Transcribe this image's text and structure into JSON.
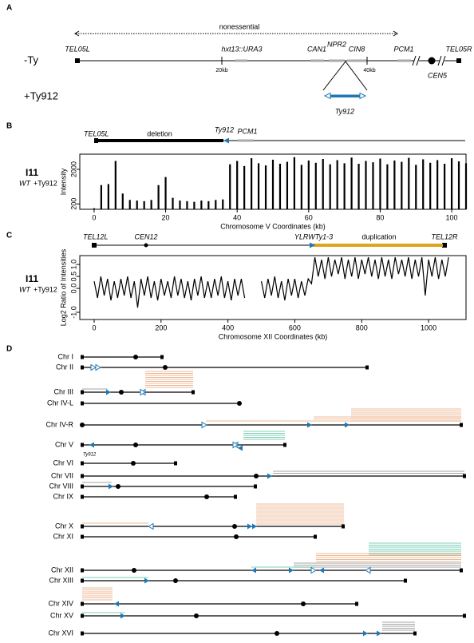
{
  "panel_a": {
    "label": "A",
    "span": "nonessential",
    "genes": [
      "TEL05L",
      "hxt13::URA3",
      "CAN1",
      "NPR2",
      "CIN8",
      "PCM1",
      "TEL05R"
    ],
    "strain_minus": "-Ty",
    "strain_plus": "+Ty912",
    "scale": [
      "20kb",
      "40kb"
    ],
    "centromere": "CEN5",
    "insertion": "Ty912"
  },
  "panel_b": {
    "label": "B",
    "map": [
      "TEL05L",
      "deletion",
      "Ty912",
      "PCM1"
    ],
    "sample": "I11",
    "strain": "WT",
    "insert": "+Ty912"
  },
  "panel_c": {
    "label": "C",
    "map": [
      "TEL12L",
      "CEN12",
      "YLRWTy1-3",
      "duplication",
      "TEL12R"
    ],
    "sample": "I11",
    "strain": "WT",
    "insert": "+Ty912"
  },
  "panel_d": {
    "label": "D",
    "chromosomes": [
      "Chr I",
      "Chr II",
      "Chr III",
      "Chr IV-L",
      "Chr IV-R",
      "Chr V",
      "Chr VI",
      "Chr VII",
      "Chr VIII",
      "Chr IX",
      "Chr X",
      "Chr XI",
      "Chr XII",
      "Chr XIII",
      "Chr XIV",
      "Chr XV",
      "Chr XVI"
    ],
    "note": "Ty912"
  },
  "chart_data": [
    {
      "type": "bar",
      "xlabel": "Chromosome V Coordinates (kb)",
      "ylabel": "Intensity",
      "color": "#000000",
      "log_y": true,
      "xlim": [
        -4,
        104
      ],
      "ylim": [
        140,
        5500
      ],
      "xticks": [
        0,
        20,
        40,
        60,
        80,
        100
      ],
      "yticks": [
        200,
        2000
      ],
      "x": [
        0,
        2,
        4,
        6,
        8,
        10,
        12,
        14,
        16,
        18,
        20,
        22,
        24,
        26,
        28,
        30,
        32,
        34,
        36,
        38,
        40,
        42,
        44,
        46,
        48,
        50,
        52,
        54,
        56,
        58,
        60,
        62,
        64,
        66,
        68,
        70,
        72,
        74,
        76,
        78,
        80,
        82,
        84,
        86,
        88,
        90,
        92,
        94,
        96,
        98,
        100,
        102,
        104
      ],
      "values": [
        150,
        700,
        750,
        3500,
        400,
        260,
        250,
        240,
        260,
        700,
        1200,
        300,
        250,
        240,
        230,
        250,
        240,
        260,
        270,
        2800,
        3500,
        2500,
        4200,
        3000,
        2600,
        3800,
        2900,
        3300,
        4500,
        2700,
        3600,
        3100,
        4000,
        2800,
        3700,
        3000,
        4400,
        2900,
        3500,
        3200,
        4100,
        2800,
        3600,
        3300,
        4300,
        2700,
        3900,
        3100,
        3700,
        2900,
        4200,
        3400,
        3000
      ]
    },
    {
      "type": "line",
      "xlabel": "Chromosome XII Coordinates (kb)",
      "ylabel": "Log2 Ratio of Intensities",
      "color": "#000000",
      "xlim": [
        -43,
        1112
      ],
      "ylim": [
        -1.3,
        1.37
      ],
      "xticks": [
        0,
        200,
        400,
        600,
        800,
        1000
      ],
      "yticks": [
        {
          "value": -1,
          "label": "-1.0"
        },
        {
          "value": 0,
          "label": "0.0"
        },
        {
          "value": 0.5,
          "label": "0.5"
        },
        {
          "value": 1,
          "label": "1.0"
        }
      ],
      "x": [
        0,
        10,
        20,
        30,
        40,
        50,
        60,
        70,
        80,
        90,
        100,
        110,
        120,
        130,
        140,
        150,
        160,
        170,
        180,
        190,
        200,
        210,
        220,
        230,
        240,
        250,
        260,
        270,
        280,
        290,
        300,
        310,
        320,
        330,
        340,
        350,
        360,
        370,
        380,
        390,
        400,
        410,
        420,
        430,
        440,
        450,
        460,
        470,
        480,
        490,
        500,
        510,
        520,
        530,
        540,
        550,
        560,
        570,
        580,
        590,
        600,
        610,
        620,
        630,
        640,
        650,
        660,
        670,
        680,
        690,
        700,
        710,
        720,
        730,
        740,
        750,
        760,
        770,
        780,
        790,
        800,
        810,
        820,
        830,
        840,
        850,
        860,
        870,
        880,
        890,
        900,
        910,
        920,
        930,
        940,
        950,
        960,
        970,
        980,
        990,
        1000,
        1010,
        1020,
        1030,
        1040,
        1050,
        1060
      ],
      "values": [
        0.3,
        -0.4,
        0.5,
        -0.3,
        0.4,
        -0.5,
        0.3,
        -0.4,
        0.4,
        -0.3,
        0.5,
        -0.4,
        0.3,
        -0.8,
        0.4,
        -0.3,
        0.5,
        -0.4,
        0.3,
        -0.5,
        0.4,
        -0.3,
        0.3,
        -0.4,
        0.5,
        -0.3,
        0.4,
        -0.4,
        0.3,
        -0.5,
        0.4,
        -0.3,
        0.5,
        -0.4,
        0.3,
        -0.4,
        0.4,
        -0.3,
        0.5,
        -0.4,
        0.3,
        -0.5,
        0.4,
        -0.3,
        0.4,
        -0.4,
        null,
        null,
        null,
        null,
        0.3,
        -0.4,
        0.4,
        -0.3,
        0.5,
        -0.4,
        0.3,
        -0.5,
        0.4,
        -0.3,
        0.4,
        -0.4,
        0.3,
        -0.3,
        0.4,
        0.2,
        1.3,
        0.5,
        1.2,
        0.4,
        1.3,
        0.5,
        1.2,
        0.6,
        1.3,
        0.4,
        1.2,
        0.5,
        1.3,
        0.4,
        1.2,
        0.6,
        1.3,
        0.5,
        1.2,
        0.4,
        1.3,
        0.5,
        1.2,
        0.4,
        1.3,
        0.6,
        1.2,
        0.5,
        1.3,
        0.4,
        1.2,
        0.5,
        1.3,
        -0.3,
        1.2,
        0.5,
        1.3,
        0.4,
        1.2,
        0.5,
        1.3
      ]
    }
  ]
}
